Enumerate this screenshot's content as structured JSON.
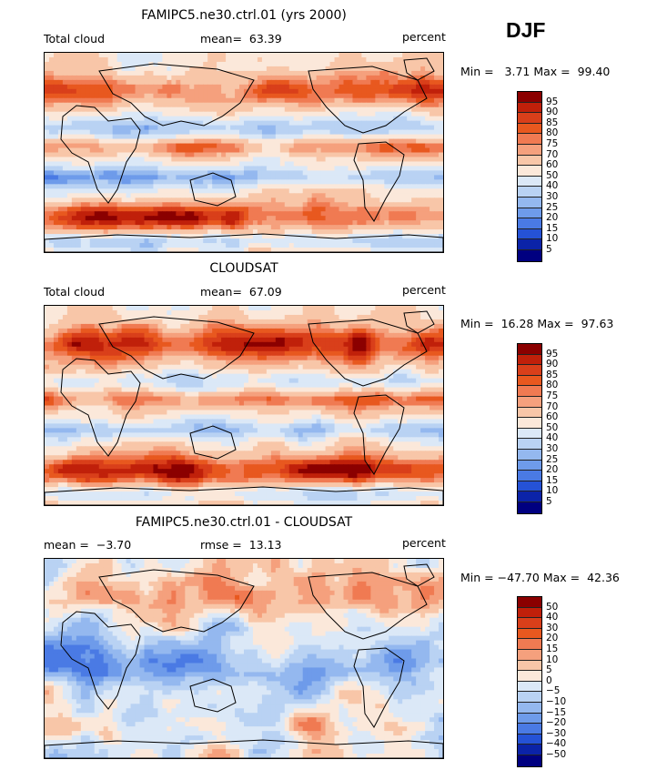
{
  "season": "DJF",
  "panels": [
    {
      "title": "FAMIPC5.ne30.ctrl.01 (yrs 2000)",
      "left_label": "Total cloud",
      "stat_label": "mean=  63.39",
      "units": "percent",
      "minmax": "Min =   3.71 Max =  99.40",
      "levels": [
        "95",
        "90",
        "85",
        "80",
        "75",
        "70",
        "60",
        "50",
        "40",
        "30",
        "25",
        "20",
        "15",
        "10",
        "5"
      ],
      "colors": [
        "#8b0000",
        "#c0200a",
        "#d93f1a",
        "#e8581f",
        "#f07a52",
        "#f5a07d",
        "#f8c6a8",
        "#fbe8da",
        "#dbe8f7",
        "#b9d2f3",
        "#94b8ef",
        "#6e9bea",
        "#4a7ae4",
        "#2552d6",
        "#0b23a8",
        "#000080"
      ],
      "map_style": "model"
    },
    {
      "title": "CLOUDSAT",
      "left_label": "Total cloud",
      "stat_label": "mean=  67.09",
      "units": "percent",
      "minmax": "Min =  16.28 Max =  97.63",
      "levels": [
        "95",
        "90",
        "85",
        "80",
        "75",
        "70",
        "60",
        "50",
        "40",
        "30",
        "25",
        "20",
        "15",
        "10",
        "5"
      ],
      "colors": [
        "#8b0000",
        "#c0200a",
        "#d93f1a",
        "#e8581f",
        "#f07a52",
        "#f5a07d",
        "#f8c6a8",
        "#fbe8da",
        "#dbe8f7",
        "#b9d2f3",
        "#94b8ef",
        "#6e9bea",
        "#4a7ae4",
        "#2552d6",
        "#0b23a8",
        "#000080"
      ],
      "map_style": "obs"
    },
    {
      "title": "FAMIPC5.ne30.ctrl.01 - CLOUDSAT",
      "left_label": "mean =  −3.70",
      "stat_label": "rmse =  13.13",
      "units": "percent",
      "minmax": "Min = −47.70 Max =  42.36",
      "levels": [
        "50",
        "40",
        "30",
        "20",
        "15",
        "10",
        "5",
        "0",
        "−5",
        "−10",
        "−15",
        "−20",
        "−30",
        "−40",
        "−50"
      ],
      "colors": [
        "#8b0000",
        "#c0200a",
        "#d93f1a",
        "#e8581f",
        "#f07a52",
        "#f5a07d",
        "#f8c6a8",
        "#fbe8da",
        "#dbe8f7",
        "#b9d2f3",
        "#94b8ef",
        "#6e9bea",
        "#4a7ae4",
        "#2552d6",
        "#0b23a8",
        "#000080"
      ],
      "map_style": "diff"
    }
  ]
}
